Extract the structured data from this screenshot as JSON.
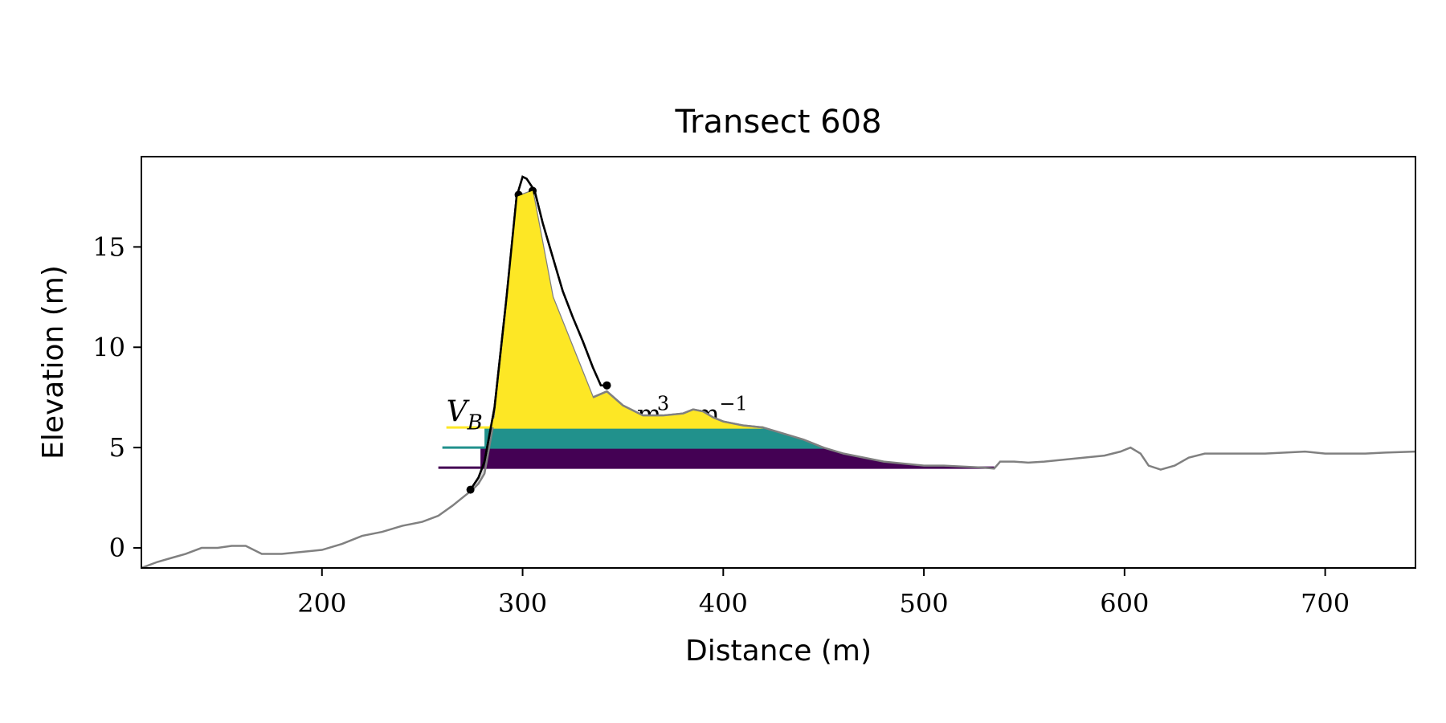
{
  "chart_data": {
    "type": "area",
    "title": "Transect 608",
    "xlabel": "Distance (m)",
    "ylabel": "Elevation (m)",
    "xlim": [
      110,
      745
    ],
    "ylim": [
      -1,
      19.5
    ],
    "xticks": [
      200,
      300,
      400,
      500,
      600,
      700
    ],
    "yticks": [
      0,
      5,
      10,
      15
    ],
    "grid": false,
    "legend": "none",
    "annotation": {
      "symbol": "V",
      "subscript": "B",
      "partial_text": "m",
      "superscript": "3",
      "unit": "m",
      "unit_superscript": "−1",
      "x": 262,
      "y": 6.3
    },
    "profile": {
      "color": "#808080",
      "x": [
        110,
        118,
        125,
        132,
        140,
        148,
        155,
        162,
        170,
        180,
        190,
        200,
        210,
        220,
        230,
        240,
        250,
        258,
        265,
        270,
        275,
        278,
        281,
        286,
        292,
        297,
        305,
        315,
        325,
        335,
        342,
        350,
        360,
        370,
        380,
        385,
        390,
        395,
        400,
        410,
        420,
        430,
        440,
        450,
        460,
        470,
        480,
        490,
        500,
        510,
        520,
        530,
        535,
        538,
        545,
        552,
        560,
        570,
        580,
        590,
        598,
        603,
        608,
        612,
        618,
        625,
        632,
        640,
        650,
        660,
        670,
        680,
        690,
        700,
        710,
        720,
        730,
        745
      ],
      "y": [
        -1.0,
        -0.7,
        -0.5,
        -0.3,
        0.0,
        0.0,
        0.1,
        0.1,
        -0.3,
        -0.3,
        -0.2,
        -0.1,
        0.2,
        0.6,
        0.8,
        1.1,
        1.3,
        1.6,
        2.1,
        2.5,
        2.9,
        3.2,
        3.7,
        6.5,
        12.0,
        17.5,
        17.8,
        12.5,
        10.0,
        7.5,
        7.8,
        7.1,
        6.6,
        6.6,
        6.7,
        6.9,
        6.8,
        6.5,
        6.3,
        6.1,
        6.0,
        5.7,
        5.4,
        5.0,
        4.7,
        4.5,
        4.3,
        4.2,
        4.1,
        4.1,
        4.05,
        4.0,
        3.95,
        4.3,
        4.3,
        4.25,
        4.3,
        4.4,
        4.5,
        4.6,
        4.8,
        5.0,
        4.7,
        4.1,
        3.9,
        4.1,
        4.5,
        4.7,
        4.7,
        4.7,
        4.7,
        4.75,
        4.8,
        4.7,
        4.7,
        4.7,
        4.75,
        4.8
      ]
    },
    "dune_profile": {
      "color": "#000000",
      "x": [
        274,
        278,
        281,
        286,
        292,
        297,
        300,
        302,
        306,
        310,
        315,
        320,
        325,
        330,
        335,
        339,
        342
      ],
      "y": [
        2.9,
        3.5,
        4.3,
        7.0,
        12.5,
        17.5,
        18.5,
        18.4,
        17.8,
        16.2,
        14.5,
        12.8,
        11.5,
        10.3,
        9.0,
        8.1,
        8.1
      ]
    },
    "markers": {
      "color": "#000000",
      "x": [
        274,
        298,
        305,
        342
      ],
      "y": [
        2.9,
        17.6,
        17.8,
        8.1
      ]
    },
    "volume_bands": [
      {
        "color": "#fde725",
        "level": 6.0,
        "line_start": 262,
        "fill_start": 283
      },
      {
        "color": "#21918c",
        "level": 5.0,
        "line_start": 260,
        "fill_start": 281
      },
      {
        "color": "#440154",
        "level": 4.0,
        "line_start": 258,
        "fill_start": 279
      }
    ],
    "base_shadow": {
      "color": "#d8d8d8",
      "level": 4.0,
      "x_start": 274,
      "x_end": 290
    },
    "band_end_x": 535
  }
}
